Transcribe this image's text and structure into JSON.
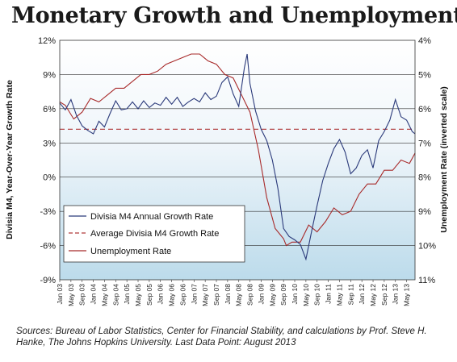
{
  "chart_data": {
    "type": "line",
    "title": "Monetary Growth and Unemployment",
    "ylabel": "Divisia M4, Year-Over-Year Growth Rate",
    "ylabel_right": "Unemployment Rate (inverted scale)",
    "ylim": [
      -9,
      12
    ],
    "yticks": [
      12,
      9,
      6,
      3,
      0,
      -3,
      -6,
      -9
    ],
    "ytick_labels": [
      "12%",
      "9%",
      "6%",
      "3%",
      "0%",
      "-3%",
      "-6%",
      "-9%"
    ],
    "ylim_right": [
      11,
      4
    ],
    "yticks_right": [
      4,
      5,
      6,
      7,
      8,
      9,
      10,
      11
    ],
    "ytick_labels_right": [
      "4%",
      "5%",
      "6%",
      "7%",
      "8%",
      "9%",
      "10%",
      "11%"
    ],
    "x_start": "2003-01",
    "x_end": "2013-08",
    "xtick_labels": [
      "Jan 03",
      "May 03",
      "Sep 03",
      "Jan 04",
      "May 04",
      "Sep 04",
      "Jan 05",
      "May 05",
      "Sep 05",
      "Jan 06",
      "May 06",
      "Sep 06",
      "Jan 07",
      "May 07",
      "Sep 07",
      "Jan 08",
      "May 08",
      "Sep 08",
      "Jan 09",
      "May 09",
      "Sep 09",
      "Jan 10",
      "May 10",
      "Sep 10",
      "Jan 11",
      "May 11",
      "Sep 11",
      "Jan 12",
      "May 12",
      "Sep 12",
      "Jan 13",
      "May 13"
    ],
    "grid": true,
    "legend_position": "bottom-left",
    "source": "Sources: Bureau of Labor Statistics, Center for Financial Stability, and calculations by Prof. Steve H. Hanke, The Johns Hopkins University. Last Data Point: August 2013",
    "series": [
      {
        "name": "Divisia M4 Annual Growth Rate",
        "axis": "left",
        "color": "#2b3a7a",
        "x": [
          "2003-01",
          "2003-03",
          "2003-05",
          "2003-07",
          "2003-09",
          "2003-11",
          "2004-01",
          "2004-03",
          "2004-05",
          "2004-07",
          "2004-09",
          "2004-11",
          "2005-01",
          "2005-03",
          "2005-05",
          "2005-07",
          "2005-09",
          "2005-11",
          "2006-01",
          "2006-03",
          "2006-05",
          "2006-07",
          "2006-09",
          "2006-11",
          "2007-01",
          "2007-03",
          "2007-05",
          "2007-07",
          "2007-09",
          "2007-11",
          "2008-01",
          "2008-03",
          "2008-05",
          "2008-07",
          "2008-08",
          "2008-09",
          "2008-11",
          "2009-01",
          "2009-03",
          "2009-05",
          "2009-07",
          "2009-09",
          "2009-11",
          "2010-01",
          "2010-03",
          "2010-05",
          "2010-07",
          "2010-09",
          "2010-11",
          "2011-01",
          "2011-03",
          "2011-05",
          "2011-07",
          "2011-09",
          "2011-11",
          "2012-01",
          "2012-03",
          "2012-05",
          "2012-07",
          "2012-09",
          "2012-11",
          "2013-01",
          "2013-03",
          "2013-05",
          "2013-07",
          "2013-08"
        ],
        "values": [
          6.5,
          5.9,
          6.8,
          5.4,
          4.5,
          4.1,
          3.8,
          4.9,
          4.4,
          5.6,
          6.7,
          5.9,
          6.0,
          6.6,
          6.0,
          6.7,
          6.1,
          6.5,
          6.3,
          7.0,
          6.4,
          7.0,
          6.2,
          6.6,
          6.9,
          6.6,
          7.4,
          6.8,
          7.1,
          8.3,
          8.8,
          7.3,
          6.2,
          9.6,
          10.8,
          8.2,
          5.8,
          4.2,
          3.2,
          1.5,
          -1.0,
          -4.5,
          -5.2,
          -5.5,
          -5.9,
          -7.2,
          -4.8,
          -2.5,
          -0.3,
          1.2,
          2.5,
          3.3,
          2.2,
          0.3,
          0.8,
          1.9,
          2.4,
          0.8,
          3.2,
          4.0,
          5.0,
          6.8,
          5.3,
          5.0,
          4.0,
          3.8
        ]
      },
      {
        "name": "Average Divisia M4 Growth Rate",
        "axis": "left",
        "color": "#b03a3a",
        "x": [
          "2003-01",
          "2013-08"
        ],
        "values": [
          4.2,
          4.2
        ]
      },
      {
        "name": "Unemployment Rate",
        "axis": "right",
        "color": "#a82a2a",
        "x": [
          "2003-01",
          "2003-03",
          "2003-06",
          "2003-09",
          "2003-12",
          "2004-03",
          "2004-06",
          "2004-09",
          "2004-12",
          "2005-03",
          "2005-06",
          "2005-09",
          "2005-12",
          "2006-03",
          "2006-06",
          "2006-09",
          "2006-12",
          "2007-03",
          "2007-06",
          "2007-09",
          "2007-12",
          "2008-03",
          "2008-06",
          "2008-09",
          "2008-12",
          "2009-03",
          "2009-06",
          "2009-09",
          "2009-10",
          "2009-12",
          "2010-03",
          "2010-06",
          "2010-09",
          "2010-12",
          "2011-03",
          "2011-06",
          "2011-09",
          "2011-12",
          "2012-03",
          "2012-06",
          "2012-09",
          "2012-12",
          "2013-03",
          "2013-06",
          "2013-08"
        ],
        "values": [
          5.8,
          5.9,
          6.3,
          6.1,
          5.7,
          5.8,
          5.6,
          5.4,
          5.4,
          5.2,
          5.0,
          5.0,
          4.9,
          4.7,
          4.6,
          4.5,
          4.4,
          4.4,
          4.6,
          4.7,
          5.0,
          5.1,
          5.6,
          6.1,
          7.2,
          8.6,
          9.5,
          9.8,
          10.0,
          9.9,
          9.9,
          9.4,
          9.6,
          9.3,
          8.9,
          9.1,
          9.0,
          8.5,
          8.2,
          8.2,
          7.8,
          7.8,
          7.5,
          7.6,
          7.3
        ]
      }
    ]
  }
}
